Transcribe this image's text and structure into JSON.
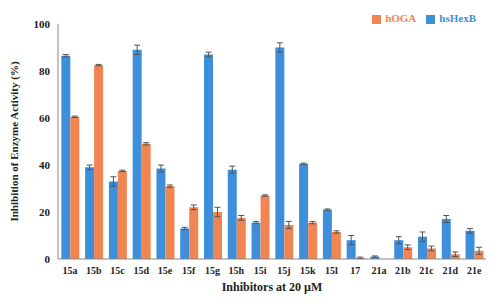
{
  "chart_data": {
    "type": "bar",
    "x_label": "Inhibitors at 20 µM",
    "y_label": "Inhibition of Enzyme Activity (%)",
    "categories": [
      "15a",
      "15b",
      "15c",
      "15d",
      "15e",
      "15f",
      "15g",
      "15h",
      "15i",
      "15j",
      "15k",
      "15l",
      "17",
      "21a",
      "21b",
      "21c",
      "21d",
      "21e"
    ],
    "series": [
      {
        "name": "hsHexB",
        "color": "#3d8fdc",
        "values": [
          86.5,
          39,
          33,
          89,
          38.5,
          13,
          87,
          38,
          15.5,
          90,
          40.5,
          21,
          8,
          1,
          8,
          9.5,
          17,
          12
        ],
        "error": [
          0.5,
          1,
          2,
          2,
          1.5,
          0.5,
          1,
          1.5,
          0.5,
          2,
          0.3,
          0.3,
          2,
          0.3,
          1.5,
          2,
          1.5,
          1
        ]
      },
      {
        "name": "hOGA",
        "color": "#f08552",
        "values": [
          60.5,
          82.5,
          37.5,
          49,
          31,
          22,
          20,
          17.5,
          27,
          14.5,
          15.5,
          11.5,
          0.5,
          0,
          5,
          4.5,
          2,
          3.5
        ],
        "error": [
          0.3,
          0.3,
          0.3,
          0.5,
          0.5,
          1,
          2,
          1,
          0.3,
          1.5,
          0.5,
          0.5,
          0.3,
          0,
          1,
          1,
          1,
          1.5
        ]
      }
    ],
    "ylim": [
      0,
      100
    ],
    "yticks": [
      0,
      20,
      40,
      60,
      80,
      100
    ],
    "grid": false,
    "legend": "top-right"
  }
}
